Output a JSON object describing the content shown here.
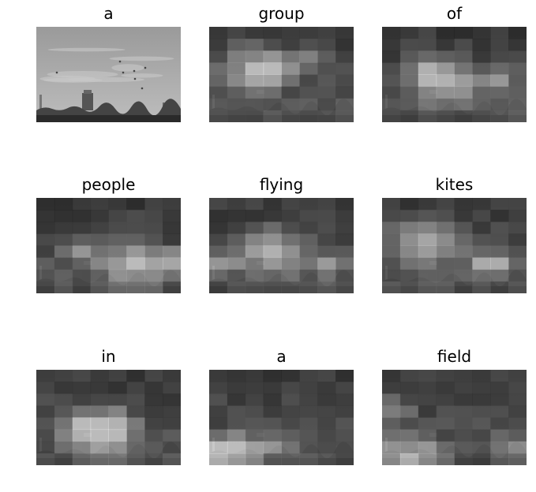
{
  "panels": [
    {
      "word": "a"
    },
    {
      "word": "group"
    },
    {
      "word": "of"
    },
    {
      "word": "people"
    },
    {
      "word": "flying"
    },
    {
      "word": "kites"
    },
    {
      "word": "in"
    },
    {
      "word": "a"
    },
    {
      "word": "field"
    }
  ],
  "colors": {
    "background": "#ffffff",
    "title": "#000000"
  }
}
